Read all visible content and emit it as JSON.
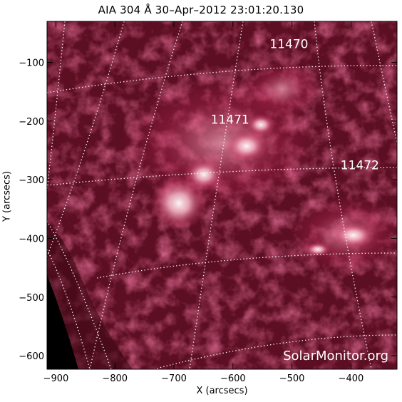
{
  "chart_data": {
    "type": "heatmap",
    "title": "AIA 304 Å 30–Apr–2012 23:01:20.130",
    "xlabel": "X (arcsecs)",
    "ylabel": "Y (arcsecs)",
    "xlim": [
      -915,
      -322
    ],
    "ylim": [
      -623,
      -30
    ],
    "xticks": [
      -900,
      -800,
      -700,
      -600,
      -500,
      -400
    ],
    "yticks": [
      -100,
      -200,
      -300,
      -400,
      -500,
      -600
    ],
    "colormap": [
      "#000000",
      "#3a0712",
      "#7a1430",
      "#c2335a",
      "#f08fab",
      "#ffffff"
    ],
    "grid": "heliographic grid, dotted white",
    "active_regions": [
      {
        "label": "11470",
        "x": -505,
        "y": -68
      },
      {
        "label": "11471",
        "x": -605,
        "y": -197
      },
      {
        "label": "11472",
        "x": -385,
        "y": -275
      }
    ],
    "watermark": "SolarMonitor.org"
  }
}
